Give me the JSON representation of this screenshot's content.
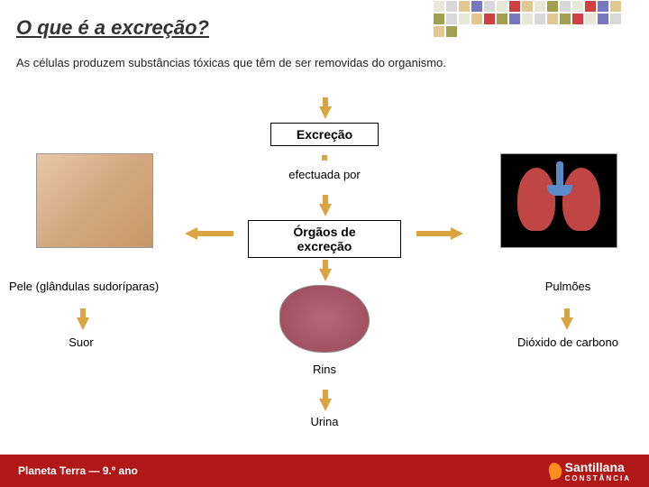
{
  "title": "O que é a excreção?",
  "subtitle": "As células produzem substâncias tóxicas que têm de ser removidas do organismo.",
  "nodes": {
    "excrecao": "Excreção",
    "efectuada": "efectuada por",
    "orgaos": "Órgãos de excreção",
    "pele": "Pele (glândulas sudoríparas)",
    "suor": "Suor",
    "rins": "Rins",
    "urina": "Urina",
    "pulmoes": "Pulmões",
    "co2": "Dióxido de carbono"
  },
  "footer": {
    "text": "Planeta Terra — 9.º ano",
    "brand": "Santillana",
    "brand_sub": "CONSTÂNCIA"
  },
  "colors": {
    "arrow": "#d9a441",
    "footer_bg": "#b01818",
    "title": "#333333",
    "text": "#222222"
  },
  "top_squares": [
    "#e8e8d8",
    "#d8d8d8",
    "#e0c890",
    "#7878c0",
    "#d8d8d8",
    "#e8e8d8",
    "#d04040",
    "#e0c890",
    "#e8e8d8",
    "#a0a050",
    "#d8d8d8",
    "#e8e8d8",
    "#d04040",
    "#7878c0",
    "#e0c890",
    "#a0a050",
    "#d8d8d8",
    "#e8e8d8",
    "#e0c890",
    "#d04040",
    "#a0a050",
    "#7878c0",
    "#e8e8d8",
    "#d8d8d8",
    "#e0c890",
    "#a0a050",
    "#d04040",
    "#e8e8d8",
    "#7878c0",
    "#d8d8d8",
    "#e0c890",
    "#a0a050"
  ]
}
